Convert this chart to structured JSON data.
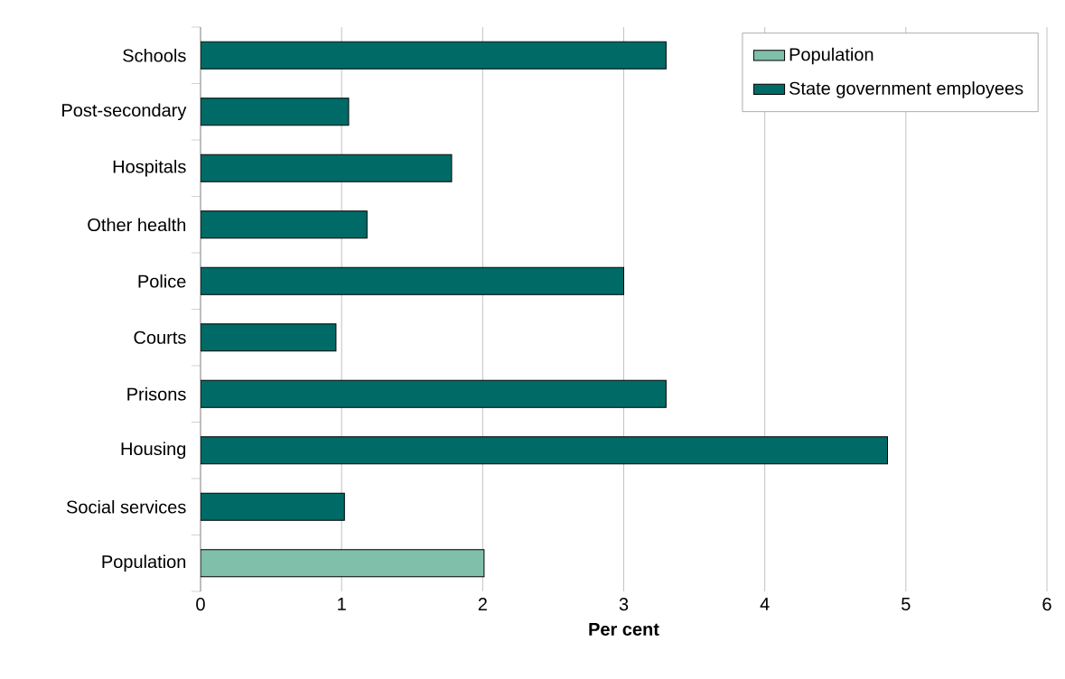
{
  "chart_data": {
    "type": "bar",
    "orientation": "horizontal",
    "xlabel": "Per cent",
    "categories": [
      "Schools",
      "Post-secondary",
      "Hospitals",
      "Other health",
      "Police",
      "Courts",
      "Prisons",
      "Housing",
      "Social services",
      "Population"
    ],
    "series": [
      {
        "name": "Population",
        "color": "#80bfaa",
        "values": [
          null,
          null,
          null,
          null,
          null,
          null,
          null,
          null,
          null,
          2.01
        ]
      },
      {
        "name": "State government employees",
        "color": "#006b66",
        "values": [
          3.3,
          1.05,
          1.78,
          1.18,
          3.0,
          0.96,
          3.3,
          4.87,
          1.02,
          null
        ]
      }
    ],
    "xlim": [
      0,
      6
    ],
    "xticks": [
      0,
      1,
      2,
      3,
      4,
      5,
      6
    ],
    "grid": "x",
    "legend": "top right"
  }
}
